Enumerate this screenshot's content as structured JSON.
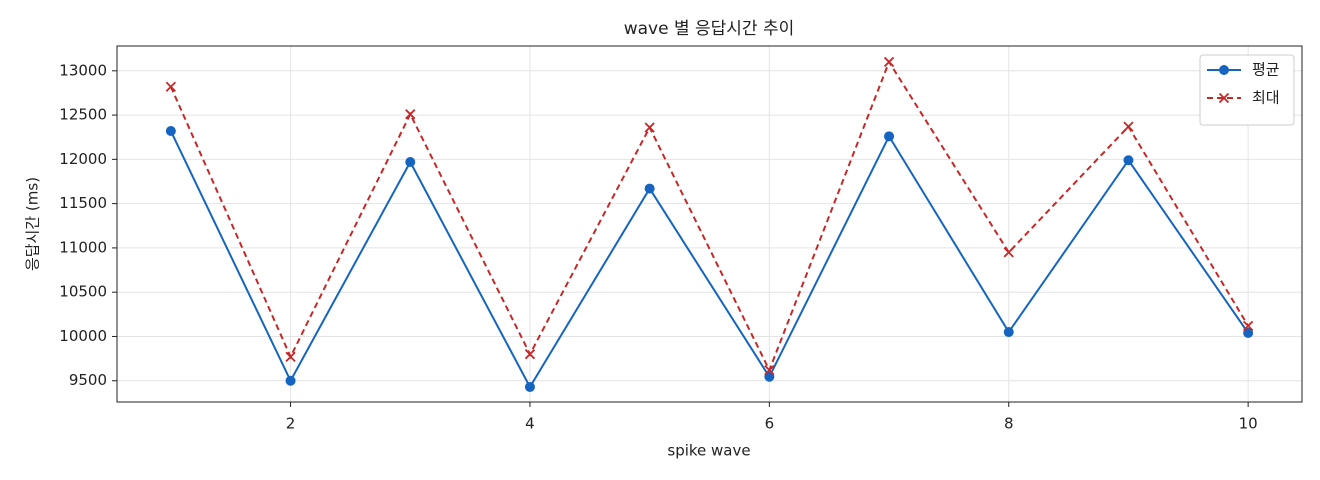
{
  "chart_data": {
    "type": "line",
    "title": "wave 별 응답시간 추이",
    "x_label": "spike wave",
    "y_label": "응답시간 (ms)",
    "x": [
      1,
      2,
      3,
      4,
      5,
      6,
      7,
      8,
      9,
      10
    ],
    "series": [
      {
        "name": "평균",
        "color": "#1565c0",
        "marker": "circle",
        "linestyle": "solid",
        "values": [
          12320,
          9500,
          11970,
          9430,
          11670,
          9545,
          12260,
          10050,
          11990,
          10040
        ]
      },
      {
        "name": "최대",
        "color": "#c62828",
        "marker": "x",
        "linestyle": "dashed",
        "values": [
          12820,
          9770,
          12510,
          9800,
          12360,
          9620,
          13100,
          10950,
          12370,
          10120
        ]
      }
    ],
    "xlim": [
      0.55,
      10.45
    ],
    "xticks": [
      2,
      4,
      6,
      8,
      10
    ],
    "ylim": [
      9260,
      13280
    ],
    "yticks": [
      9500,
      10000,
      10500,
      11000,
      11500,
      12000,
      12500,
      13000
    ],
    "grid": true,
    "legend": "upper-right"
  }
}
